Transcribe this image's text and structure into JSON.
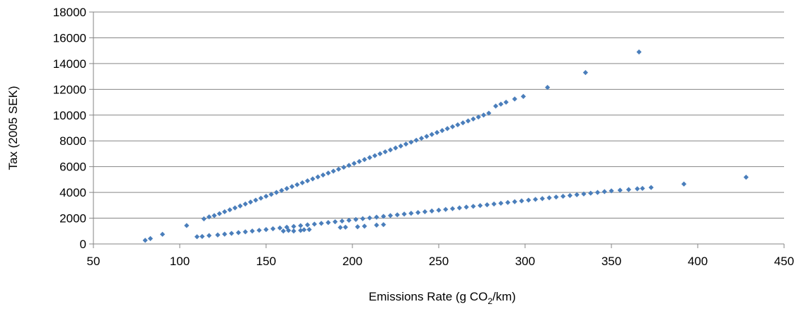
{
  "chart_data": {
    "type": "scatter",
    "title": "",
    "xlabel_main": "Emissions Rate (g CO",
    "xlabel_sub": "2",
    "xlabel_tail": "/km)",
    "ylabel": "Tax (2005 SEK)",
    "xlim": [
      50,
      450
    ],
    "ylim": [
      0,
      18000
    ],
    "x_ticks": [
      50,
      100,
      150,
      200,
      250,
      300,
      350,
      400,
      450
    ],
    "y_ticks": [
      0,
      2000,
      4000,
      6000,
      8000,
      10000,
      12000,
      14000,
      16000,
      18000
    ],
    "grid": "horizontal",
    "legend": "none",
    "marker_color": "#4A7EBB",
    "series": [
      {
        "points": [
          [
            114,
            1950
          ],
          [
            117,
            2100
          ],
          [
            120,
            2200
          ],
          [
            123,
            2350
          ],
          [
            126,
            2500
          ],
          [
            129,
            2650
          ],
          [
            132,
            2800
          ],
          [
            135,
            2950
          ],
          [
            138,
            3100
          ],
          [
            141,
            3250
          ],
          [
            144,
            3400
          ],
          [
            147,
            3550
          ],
          [
            150,
            3700
          ],
          [
            153,
            3850
          ],
          [
            156,
            4000
          ],
          [
            159,
            4150
          ],
          [
            162,
            4300
          ],
          [
            165,
            4450
          ],
          [
            168,
            4600
          ],
          [
            171,
            4750
          ],
          [
            174,
            4900
          ],
          [
            177,
            5050
          ],
          [
            180,
            5200
          ],
          [
            183,
            5350
          ],
          [
            186,
            5500
          ],
          [
            189,
            5650
          ],
          [
            192,
            5800
          ],
          [
            195,
            5950
          ],
          [
            198,
            6100
          ],
          [
            201,
            6250
          ],
          [
            204,
            6400
          ],
          [
            207,
            6550
          ],
          [
            210,
            6700
          ],
          [
            213,
            6850
          ],
          [
            216,
            7000
          ],
          [
            219,
            7150
          ],
          [
            222,
            7300
          ],
          [
            225,
            7450
          ],
          [
            228,
            7600
          ],
          [
            231,
            7750
          ],
          [
            234,
            7900
          ],
          [
            237,
            8050
          ],
          [
            240,
            8200
          ],
          [
            243,
            8350
          ],
          [
            246,
            8500
          ],
          [
            249,
            8650
          ],
          [
            252,
            8800
          ],
          [
            255,
            8950
          ],
          [
            258,
            9100
          ],
          [
            261,
            9250
          ],
          [
            264,
            9400
          ],
          [
            267,
            9550
          ],
          [
            270,
            9700
          ],
          [
            273,
            9850
          ],
          [
            276,
            10000
          ],
          [
            279,
            10150
          ],
          [
            283,
            10700
          ],
          [
            286,
            10850
          ],
          [
            289,
            11000
          ],
          [
            294,
            11250
          ],
          [
            299,
            11450
          ],
          [
            313,
            12150
          ],
          [
            335,
            13300
          ],
          [
            366,
            14900
          ]
        ]
      },
      {
        "points": [
          [
            80,
            280
          ],
          [
            83,
            420
          ],
          [
            90,
            750
          ],
          [
            104,
            1430
          ],
          [
            110,
            560
          ],
          [
            113,
            580
          ],
          [
            117,
            650
          ],
          [
            122,
            700
          ],
          [
            126,
            760
          ],
          [
            130,
            820
          ],
          [
            134,
            880
          ],
          [
            138,
            940
          ],
          [
            142,
            1000
          ],
          [
            146,
            1060
          ],
          [
            150,
            1120
          ],
          [
            154,
            1180
          ],
          [
            158,
            1240
          ],
          [
            162,
            1300
          ],
          [
            166,
            1360
          ],
          [
            170,
            1420
          ],
          [
            174,
            1480
          ],
          [
            178,
            1540
          ],
          [
            182,
            1600
          ],
          [
            186,
            1660
          ],
          [
            190,
            1720
          ],
          [
            194,
            1780
          ],
          [
            198,
            1840
          ],
          [
            202,
            1900
          ],
          [
            206,
            1960
          ],
          [
            210,
            2020
          ],
          [
            214,
            2080
          ],
          [
            218,
            2140
          ],
          [
            222,
            2200
          ],
          [
            226,
            2260
          ],
          [
            230,
            2320
          ],
          [
            234,
            2380
          ],
          [
            238,
            2440
          ],
          [
            242,
            2500
          ],
          [
            246,
            2560
          ],
          [
            250,
            2620
          ],
          [
            254,
            2680
          ],
          [
            258,
            2740
          ],
          [
            262,
            2800
          ],
          [
            266,
            2860
          ],
          [
            270,
            2920
          ],
          [
            274,
            2980
          ],
          [
            278,
            3040
          ],
          [
            282,
            3100
          ],
          [
            286,
            3160
          ],
          [
            290,
            3220
          ],
          [
            294,
            3280
          ],
          [
            298,
            3340
          ],
          [
            302,
            3400
          ],
          [
            306,
            3460
          ],
          [
            310,
            3520
          ],
          [
            314,
            3580
          ],
          [
            318,
            3640
          ],
          [
            322,
            3700
          ],
          [
            326,
            3760
          ],
          [
            330,
            3820
          ],
          [
            334,
            3880
          ],
          [
            338,
            3940
          ],
          [
            342,
            4000
          ],
          [
            346,
            4060
          ],
          [
            350,
            4120
          ],
          [
            355,
            4170
          ],
          [
            360,
            4220
          ],
          [
            365,
            4280
          ],
          [
            368,
            4310
          ],
          [
            373,
            4380
          ],
          [
            392,
            4650
          ],
          [
            428,
            5180
          ],
          [
            160,
            1000
          ],
          [
            163,
            1050
          ],
          [
            166,
            1000
          ],
          [
            170,
            1050
          ],
          [
            172,
            1100
          ],
          [
            175,
            1120
          ],
          [
            193,
            1280
          ],
          [
            196,
            1300
          ],
          [
            203,
            1330
          ],
          [
            207,
            1380
          ],
          [
            214,
            1460
          ],
          [
            218,
            1500
          ]
        ]
      }
    ]
  }
}
